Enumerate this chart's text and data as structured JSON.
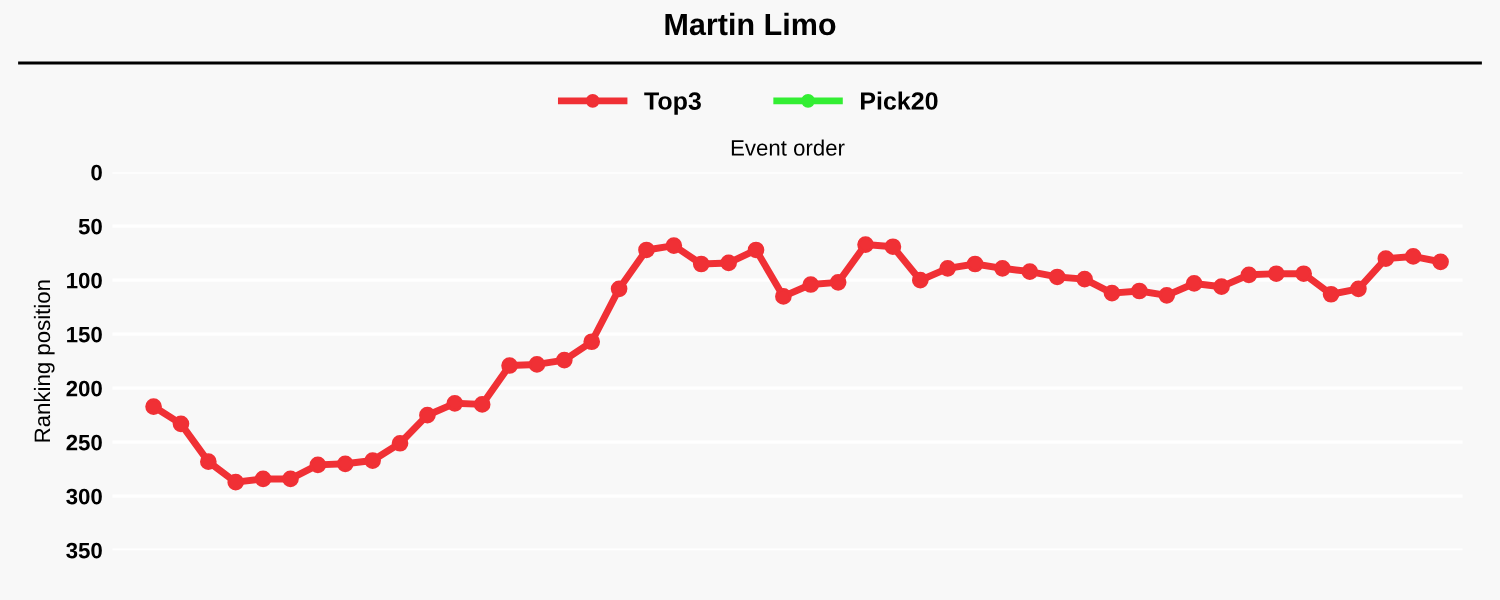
{
  "chart_data": {
    "type": "line",
    "title": "Martin Limo",
    "xlabel": "Event order",
    "ylabel": "Ranking position",
    "categories": [
      null,
      null,
      null,
      null,
      null,
      null,
      null,
      null,
      null,
      null,
      null,
      null,
      null,
      null,
      null,
      null,
      null,
      null,
      null,
      null,
      null,
      null,
      null,
      null,
      null,
      null,
      null,
      null,
      null,
      null,
      null,
      null,
      null,
      null,
      null,
      null,
      null,
      null,
      null,
      null,
      null,
      null,
      null,
      null,
      null,
      null,
      null,
      null
    ],
    "series": [
      {
        "name": "Top3",
        "color": "#f03035",
        "values": [
          217,
          233,
          268,
          287,
          284,
          284,
          271,
          270,
          267,
          251,
          225,
          214,
          215,
          179,
          178,
          174,
          157,
          108,
          72,
          68,
          85,
          84,
          72,
          115,
          104,
          102,
          67,
          69,
          100,
          89,
          85,
          89,
          92,
          97,
          99,
          112,
          110,
          114,
          103,
          106,
          95,
          94,
          94,
          113,
          108,
          80,
          78,
          83
        ]
      },
      {
        "name": "Pick20",
        "color": "#33ee33",
        "values": [
          null,
          null,
          null,
          null,
          null,
          null,
          null,
          null,
          null,
          null,
          null,
          null,
          null,
          null,
          null,
          null,
          null,
          null,
          null,
          null,
          null,
          null,
          null,
          null,
          null,
          null,
          null,
          null,
          null,
          null,
          null,
          null,
          null,
          null,
          null,
          null,
          null,
          null,
          null,
          null,
          null,
          null,
          null,
          null,
          null,
          null,
          null,
          null
        ]
      }
    ],
    "ylim": [
      350,
      0
    ],
    "yticks": [
      0,
      50,
      100,
      150,
      200,
      250,
      300,
      350
    ],
    "tick_labels": "y",
    "grid": "y",
    "legend": "top",
    "marker": "circle",
    "line_style": "solid"
  }
}
